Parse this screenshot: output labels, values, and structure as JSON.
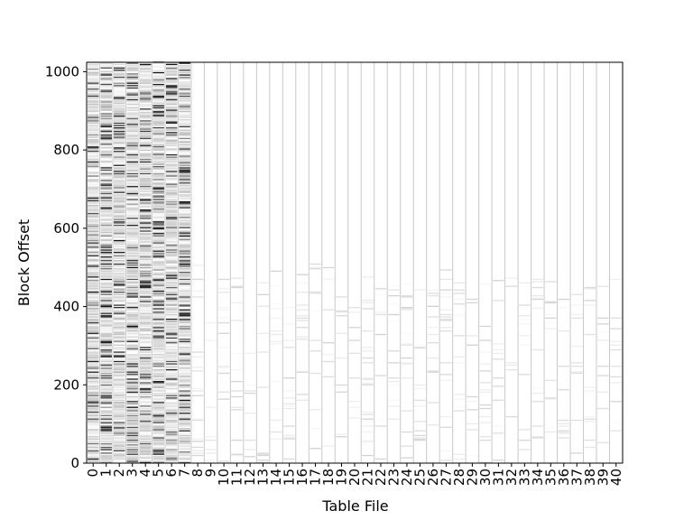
{
  "chart_data": {
    "type": "heatmap",
    "title": "",
    "xlabel": "Table File",
    "ylabel": "Block Offset",
    "colormap": "grayscale",
    "colors": {
      "background": "#ffffff",
      "separator": "#c8c8c8",
      "axis": "#000000",
      "dense_mark": "#000000"
    },
    "x_categories": [
      "0",
      "1",
      "2",
      "3",
      "4",
      "5",
      "6",
      "7",
      "8",
      "9",
      "10",
      "11",
      "12",
      "13",
      "14",
      "15",
      "16",
      "17",
      "18",
      "19",
      "20",
      "21",
      "22",
      "23",
      "24",
      "25",
      "26",
      "27",
      "28",
      "29",
      "30",
      "31",
      "32",
      "33",
      "34",
      "35",
      "36",
      "37",
      "38",
      "39",
      "40"
    ],
    "ylim": [
      0,
      1024
    ],
    "yticks": [
      0,
      200,
      400,
      600,
      800,
      1000
    ],
    "column_block_range": [
      [
        0,
        1024
      ],
      [
        0,
        1024
      ],
      [
        0,
        1024
      ],
      [
        0,
        1024
      ],
      [
        0,
        1024
      ],
      [
        0,
        1024
      ],
      [
        0,
        1024
      ],
      [
        0,
        1024
      ],
      [
        0,
        510
      ],
      [
        0,
        470
      ],
      [
        0,
        470
      ],
      [
        0,
        480
      ],
      [
        0,
        470
      ],
      [
        0,
        470
      ],
      [
        0,
        490
      ],
      [
        0,
        500
      ],
      [
        0,
        500
      ],
      [
        0,
        510
      ],
      [
        0,
        500
      ],
      [
        0,
        480
      ],
      [
        0,
        480
      ],
      [
        0,
        480
      ],
      [
        0,
        505
      ],
      [
        0,
        480
      ],
      [
        0,
        470
      ],
      [
        0,
        475
      ],
      [
        0,
        490
      ],
      [
        0,
        495
      ],
      [
        0,
        470
      ],
      [
        0,
        470
      ],
      [
        0,
        470
      ],
      [
        0,
        470
      ],
      [
        0,
        480
      ],
      [
        0,
        470
      ],
      [
        0,
        470
      ],
      [
        0,
        470
      ],
      [
        0,
        470
      ],
      [
        0,
        470
      ],
      [
        0,
        470
      ],
      [
        0,
        470
      ],
      [
        0,
        470
      ]
    ],
    "column_access_intensity": [
      0.55,
      0.7,
      0.45,
      0.55,
      0.5,
      0.6,
      0.45,
      0.7,
      0.06,
      0.05,
      0.05,
      0.05,
      0.05,
      0.05,
      0.05,
      0.05,
      0.05,
      0.05,
      0.05,
      0.05,
      0.05,
      0.05,
      0.05,
      0.05,
      0.05,
      0.05,
      0.05,
      0.05,
      0.05,
      0.05,
      0.04,
      0.04,
      0.04,
      0.04,
      0.04,
      0.04,
      0.04,
      0.04,
      0.04,
      0.04,
      0.04
    ],
    "legend": "none",
    "grid": false
  }
}
